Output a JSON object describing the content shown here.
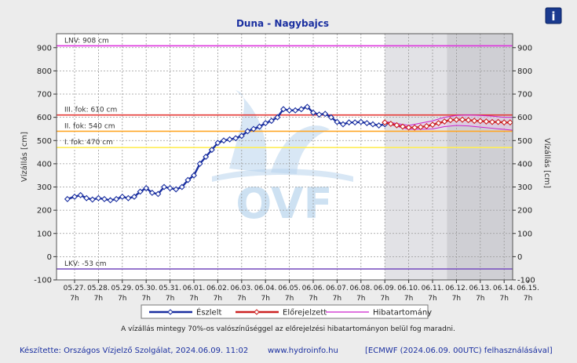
{
  "info_icon_glyph": "i",
  "chart_data": {
    "type": "line",
    "title": "Duna - Nagybajcs",
    "ylabel_left": "Vízállás [cm]",
    "ylabel_right": "Vízállás [cm]",
    "ylim": [
      -100,
      960
    ],
    "yticks": [
      -100,
      0,
      100,
      200,
      300,
      400,
      500,
      600,
      700,
      800,
      900
    ],
    "x_tick_dates": [
      "05.27.",
      "05.28.",
      "05.29.",
      "05.30.",
      "05.31.",
      "06.01.",
      "06.02.",
      "06.03.",
      "06.04.",
      "06.05.",
      "06.06.",
      "06.07.",
      "06.08.",
      "06.09.",
      "06.10.",
      "06.11.",
      "06.12.",
      "06.13.",
      "06.14.",
      "06.15."
    ],
    "x_tick_hour": "7h",
    "grid": true,
    "legend_position": "bottom",
    "background_shading": [
      {
        "from_day": 13.0,
        "to_day": 15.6,
        "color": "#e2e2e6"
      },
      {
        "from_day": 15.6,
        "to_day": 19.2,
        "color": "#cfcfd4"
      }
    ],
    "thresholds": [
      {
        "label": "LNV: 908 cm",
        "value": 908,
        "color": "#dd33dd"
      },
      {
        "label": "III. fok: 610 cm",
        "value": 610,
        "color": "#e53935"
      },
      {
        "label": "II. fok: 540 cm",
        "value": 540,
        "color": "#ffa726"
      },
      {
        "label": "I. fok: 470 cm",
        "value": 470,
        "color": "#ffee58"
      },
      {
        "label": "LKV: -53 cm",
        "value": -53,
        "color": "#7e57c2"
      }
    ],
    "series": [
      {
        "name": "Észlelt",
        "color": "#1a2fa0",
        "x": [
          -0.3,
          0,
          0.25,
          0.5,
          0.75,
          1,
          1.25,
          1.5,
          1.75,
          2,
          2.25,
          2.5,
          2.75,
          3,
          3.25,
          3.5,
          3.75,
          4,
          4.25,
          4.5,
          4.75,
          5,
          5.25,
          5.5,
          5.75,
          6,
          6.25,
          6.5,
          6.75,
          7,
          7.25,
          7.5,
          7.75,
          8,
          8.25,
          8.5,
          8.75,
          9,
          9.25,
          9.5,
          9.75,
          10,
          10.25,
          10.5,
          10.75,
          11,
          11.25,
          11.5,
          11.75,
          12,
          12.25,
          12.5,
          12.75,
          13
        ],
        "y": [
          248,
          258,
          265,
          252,
          246,
          252,
          248,
          243,
          248,
          258,
          252,
          258,
          280,
          295,
          275,
          270,
          300,
          295,
          290,
          300,
          330,
          350,
          400,
          430,
          460,
          490,
          500,
          505,
          510,
          520,
          540,
          550,
          560,
          575,
          585,
          600,
          635,
          630,
          630,
          635,
          645,
          620,
          612,
          615,
          600,
          580,
          570,
          578,
          578,
          580,
          575,
          570,
          565,
          570
        ]
      },
      {
        "name": "Előrejelzett",
        "color": "#cc2222",
        "x": [
          13,
          13.25,
          13.5,
          13.75,
          14,
          14.25,
          14.5,
          14.75,
          15,
          15.25,
          15.5,
          15.75,
          16,
          16.25,
          16.5,
          16.75,
          17,
          17.25,
          17.5,
          17.75,
          18,
          18.25,
          18.5,
          18.75,
          19,
          19.2
        ],
        "y": [
          578,
          572,
          566,
          560,
          556,
          556,
          558,
          562,
          568,
          575,
          582,
          588,
          590,
          590,
          588,
          585,
          584,
          582,
          580,
          580,
          578,
          578,
          576,
          575,
          572,
          565
        ]
      },
      {
        "name": "Hibatartomány",
        "color": "#cc22cc",
        "x": [
          13,
          14,
          15,
          15.5,
          16,
          16.5,
          17,
          17.5,
          18,
          18.5,
          19,
          19.2
        ],
        "upper": [
          582,
          565,
          585,
          600,
          608,
          610,
          608,
          605,
          600,
          600,
          598,
          595
        ],
        "lower": [
          575,
          548,
          550,
          560,
          565,
          563,
          558,
          553,
          548,
          543,
          540,
          535
        ]
      }
    ],
    "watermark": "OVF"
  },
  "legend": {
    "items": [
      {
        "label": "Észlelt",
        "color": "#1a2fa0"
      },
      {
        "label": "Előrejelzett",
        "color": "#cc2222"
      },
      {
        "label": "Hibatartomány",
        "color": "#cc22cc"
      }
    ]
  },
  "footnote": "A vízállás mintegy 70%-os valószínűséggel az előrejelzési hibatartományon belül fog maradni.",
  "footer": {
    "credit": "Készítette: Országos Vízjelző Szolgálat, 2024.06.09. 11:02",
    "url": "www.hydroinfo.hu",
    "model": "[ECMWF (2024.06.09. 00UTC) felhasználásával]"
  }
}
